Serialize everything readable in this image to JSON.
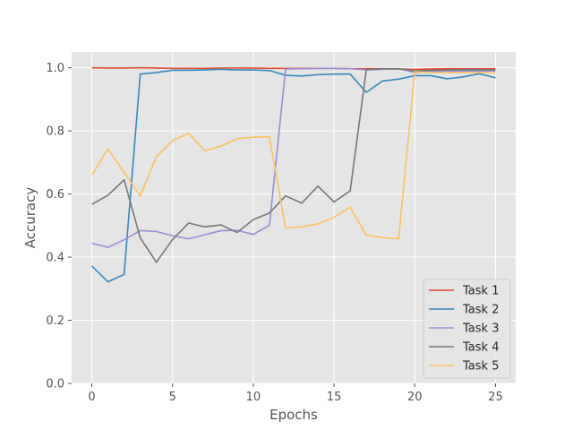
{
  "chart_data": {
    "type": "line",
    "xlabel": "Epochs",
    "ylabel": "Accuracy",
    "xlim": [
      -1.25,
      26.25
    ],
    "ylim": [
      0.0,
      1.05
    ],
    "xticks": [
      0,
      5,
      10,
      15,
      20,
      25
    ],
    "yticks": [
      0.0,
      0.2,
      0.4,
      0.6,
      0.8,
      1.0
    ],
    "grid": true,
    "legend_position": "bottom-right",
    "x": [
      0,
      1,
      2,
      3,
      4,
      5,
      6,
      7,
      8,
      9,
      10,
      11,
      12,
      13,
      14,
      15,
      16,
      17,
      18,
      19,
      20,
      21,
      22,
      23,
      24,
      25
    ],
    "series": [
      {
        "name": "Task 1",
        "color": "#E24A33",
        "values": [
          1.0,
          0.999,
          0.999,
          1.0,
          0.999,
          0.998,
          0.998,
          0.998,
          0.999,
          0.999,
          0.999,
          0.998,
          0.998,
          0.998,
          0.998,
          0.998,
          0.997,
          0.997,
          0.997,
          0.996,
          0.995,
          0.996,
          0.997,
          0.997,
          0.997,
          0.997
        ]
      },
      {
        "name": "Task 2",
        "color": "#348ABD",
        "values": [
          0.372,
          0.322,
          0.345,
          0.98,
          0.985,
          0.992,
          0.992,
          0.993,
          0.995,
          0.993,
          0.993,
          0.991,
          0.976,
          0.974,
          0.978,
          0.98,
          0.98,
          0.922,
          0.958,
          0.964,
          0.975,
          0.975,
          0.965,
          0.971,
          0.981,
          0.968
        ]
      },
      {
        "name": "Task 3",
        "color": "#988ED5",
        "values": [
          0.444,
          0.431,
          0.455,
          0.484,
          0.481,
          0.468,
          0.458,
          0.471,
          0.484,
          0.485,
          0.472,
          0.501,
          0.996,
          0.997,
          0.998,
          0.998,
          0.997,
          0.993,
          0.995,
          0.997,
          0.985,
          0.988,
          0.99,
          0.99,
          0.99,
          0.99
        ]
      },
      {
        "name": "Task 4",
        "color": "#777777",
        "values": [
          0.567,
          0.596,
          0.645,
          0.461,
          0.384,
          0.456,
          0.508,
          0.496,
          0.502,
          0.478,
          0.519,
          0.54,
          0.594,
          0.571,
          0.625,
          0.575,
          0.61,
          0.994,
          0.997,
          0.997,
          0.99,
          0.992,
          0.993,
          0.994,
          0.994,
          0.993
        ]
      },
      {
        "name": "Task 5",
        "color": "#FBC15E",
        "values": [
          0.66,
          0.743,
          0.668,
          0.594,
          0.718,
          0.769,
          0.792,
          0.737,
          0.752,
          0.775,
          0.78,
          0.781,
          0.492,
          0.496,
          0.505,
          0.526,
          0.558,
          0.469,
          0.462,
          0.458,
          0.987,
          0.985,
          0.984,
          0.985,
          0.985,
          0.984
        ]
      }
    ]
  }
}
